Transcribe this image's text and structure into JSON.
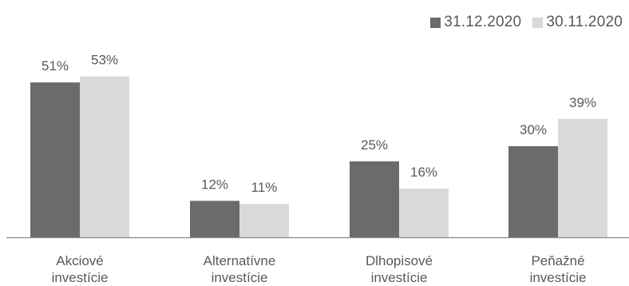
{
  "chart_data": {
    "type": "bar",
    "categories": [
      [
        "Akciové",
        "investície"
      ],
      [
        "Alternatívne",
        "investície"
      ],
      [
        "Dlhopisové",
        "investície"
      ],
      [
        "Peňažné",
        "investície"
      ]
    ],
    "series": [
      {
        "name": "31.12.2020",
        "values": [
          51,
          12,
          25,
          30
        ],
        "labels": [
          "51%",
          "12%",
          "25%",
          "30%"
        ],
        "color": "#6b6b6b"
      },
      {
        "name": "30.11.2020",
        "values": [
          53,
          11,
          16,
          39
        ],
        "labels": [
          "53%",
          "11%",
          "16%",
          "39%"
        ],
        "color": "#d9d9d9"
      }
    ],
    "ylim": [
      0,
      60
    ],
    "grid": false,
    "legend": "top-right",
    "axis_color": "#888888",
    "label_color": "#595959"
  }
}
